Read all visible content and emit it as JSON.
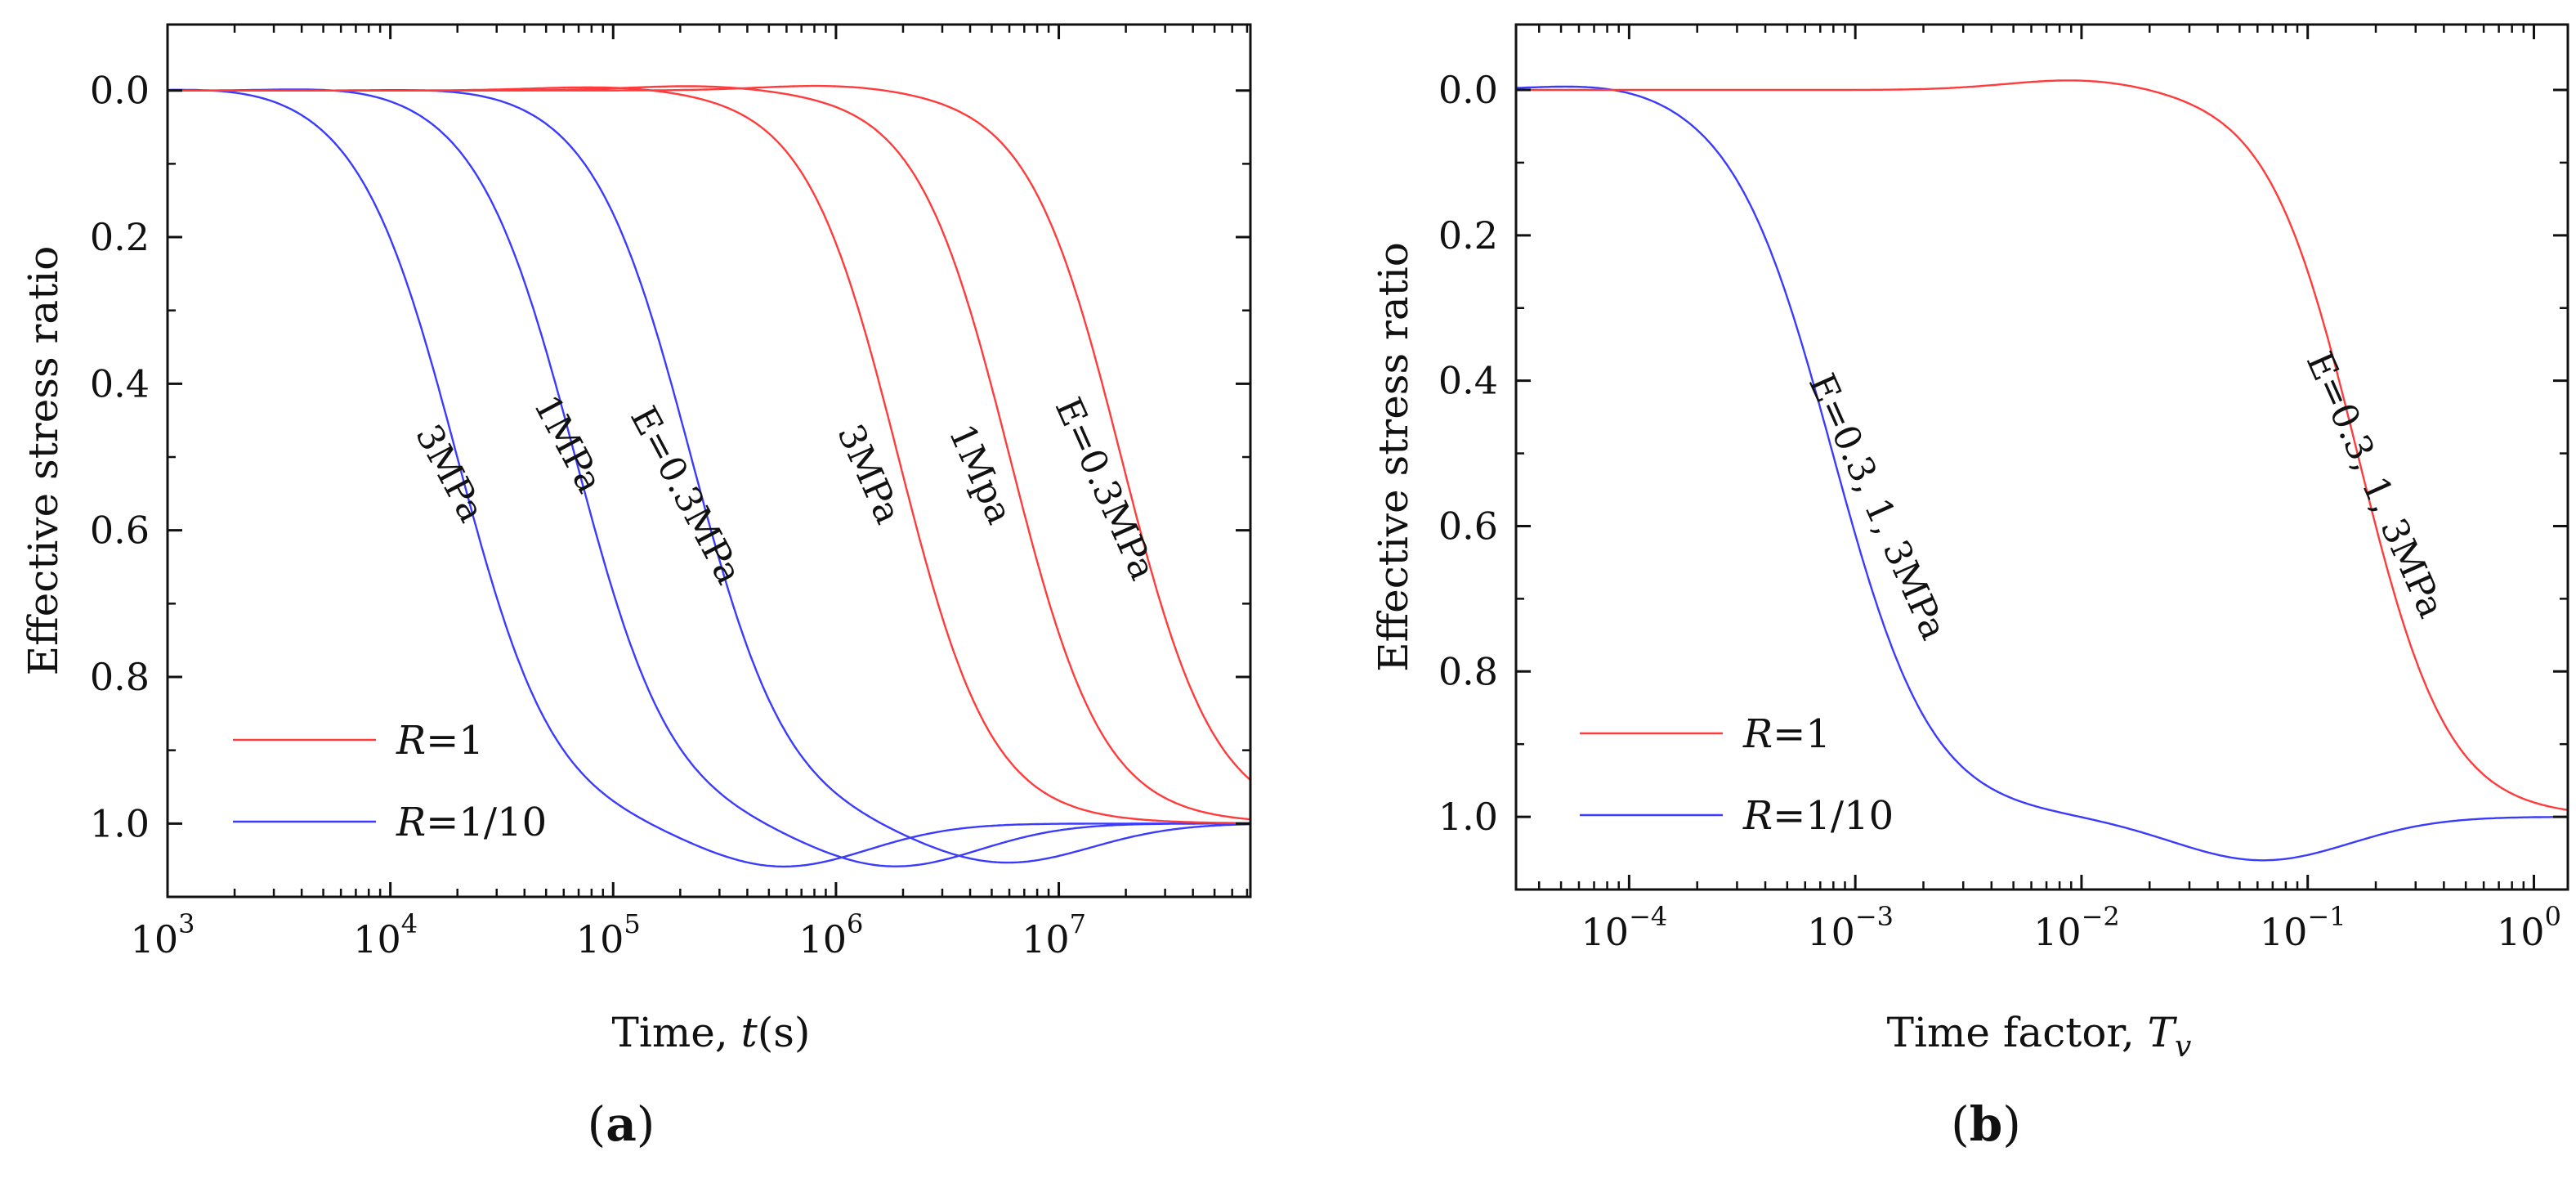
{
  "chart_data": [
    {
      "panel_label_letter": "a",
      "type": "line",
      "xscale": "log",
      "xlim_exp": [
        3,
        7.86
      ],
      "ylim": [
        -0.09,
        1.1
      ],
      "y_inverted": true,
      "ylabel": "Effective stress ratio",
      "xlabel_prefix": "Time, ",
      "xlabel_var": "t",
      "xlabel_suffix": "(s)",
      "x_ticks_exp": [
        3,
        4,
        5,
        6,
        7
      ],
      "y_ticks": [
        "0.0",
        "0.2",
        "0.4",
        "0.6",
        "0.8",
        "1.0"
      ],
      "y_tick_values": [
        0,
        0.2,
        0.4,
        0.6,
        0.8,
        1.0
      ],
      "legend": [
        {
          "var": "R",
          "text": "=1",
          "color": "#ff3b3b"
        },
        {
          "var": "R",
          "text": "=1/10",
          "color": "#3b3bff"
        }
      ],
      "series": [
        {
          "name": "R=1/10, E=3MPa",
          "color": "#3b3bff",
          "peak_bump": 0.008,
          "peak_pos": 3.4,
          "mid": 4.3,
          "width": 0.22,
          "overshoot": 0.06,
          "min_pos": 5.75,
          "min_width": 0.55
        },
        {
          "name": "R=1/10, E=1MPa",
          "color": "#3b3bff",
          "peak_bump": 0.008,
          "peak_pos": 3.9,
          "mid": 4.83,
          "width": 0.22,
          "overshoot": 0.06,
          "min_pos": 6.25,
          "min_width": 0.55
        },
        {
          "name": "R=1/10, E=0.3MPa",
          "color": "#3b3bff",
          "peak_bump": 0.006,
          "peak_pos": 4.4,
          "mid": 5.35,
          "width": 0.22,
          "overshoot": 0.055,
          "min_pos": 6.75,
          "min_width": 0.55
        },
        {
          "name": "R=1, E=3MPa",
          "color": "#ff3b3b",
          "peak_bump": 0.006,
          "peak_pos": 5.0,
          "mid": 6.28,
          "width": 0.21,
          "overshoot": 0,
          "min_pos": 7,
          "min_width": 0.5
        },
        {
          "name": "R=1, E=1MPa",
          "color": "#ff3b3b",
          "peak_bump": 0.007,
          "peak_pos": 5.4,
          "mid": 6.78,
          "width": 0.21,
          "overshoot": 0,
          "min_pos": 7,
          "min_width": 0.5
        },
        {
          "name": "R=1, E=0.3MPa",
          "color": "#ff3b3b",
          "peak_bump": 0.008,
          "peak_pos": 6.0,
          "mid": 7.28,
          "width": 0.21,
          "overshoot": 0,
          "min_pos": 7,
          "min_width": 0.5
        }
      ],
      "annotations": [
        {
          "text": "3MPa",
          "x_exp": 4.22,
          "y": 0.53,
          "angle": 62
        },
        {
          "text": "1MPa",
          "x_exp": 4.75,
          "y": 0.49,
          "angle": 62
        },
        {
          "text": "E=0.3MPa",
          "x_exp": 5.28,
          "y": 0.56,
          "angle": 62
        },
        {
          "text": "3MPa",
          "x_exp": 6.1,
          "y": 0.53,
          "angle": 66
        },
        {
          "text": "1Mpa",
          "x_exp": 6.6,
          "y": 0.53,
          "angle": 66
        },
        {
          "text": "E=0.3MPa",
          "x_exp": 7.16,
          "y": 0.55,
          "angle": 66
        }
      ]
    },
    {
      "panel_label_letter": "b",
      "type": "line",
      "xscale": "log",
      "xlim_exp": [
        -4.5,
        0.15
      ],
      "ylim": [
        -0.09,
        1.1
      ],
      "y_inverted": true,
      "ylabel": "Effective stress ratio",
      "xlabel_prefix": "Time factor, ",
      "xlabel_var": "T",
      "xlabel_sub": "v",
      "xlabel_suffix": "",
      "x_ticks_exp": [
        -4,
        -3,
        -2,
        -1,
        0
      ],
      "y_ticks": [
        "0.0",
        "0.2",
        "0.4",
        "0.6",
        "0.8",
        "1.0"
      ],
      "y_tick_values": [
        0,
        0.2,
        0.4,
        0.6,
        0.8,
        1.0
      ],
      "legend": [
        {
          "var": "R",
          "text": "=1",
          "color": "#ff3b3b"
        },
        {
          "var": "R",
          "text": "=1/10",
          "color": "#3b3bff"
        }
      ],
      "series": [
        {
          "name": "R=1/10, E=0.3, 1, 3MPa",
          "color": "#3b3bff",
          "peak_bump": 0.012,
          "peak_pos": -4.05,
          "mid": -3.1,
          "width": 0.22,
          "overshoot": 0.06,
          "min_pos": -1.2,
          "min_width": 0.55
        },
        {
          "name": "R=1, E=0.3, 1, 3MPa",
          "color": "#ff3b3b",
          "peak_bump": 0.015,
          "peak_pos": -2.0,
          "mid": -0.78,
          "width": 0.2,
          "overshoot": 0,
          "min_pos": 0,
          "min_width": 0.5
        }
      ],
      "annotations": [
        {
          "text": "E=0.3, 1, 3MPa",
          "x_exp": -2.95,
          "y": 0.58,
          "angle": 66
        },
        {
          "text": "E=0.3, 1, 3MPa",
          "x_exp": -0.75,
          "y": 0.55,
          "angle": 66
        }
      ]
    }
  ]
}
